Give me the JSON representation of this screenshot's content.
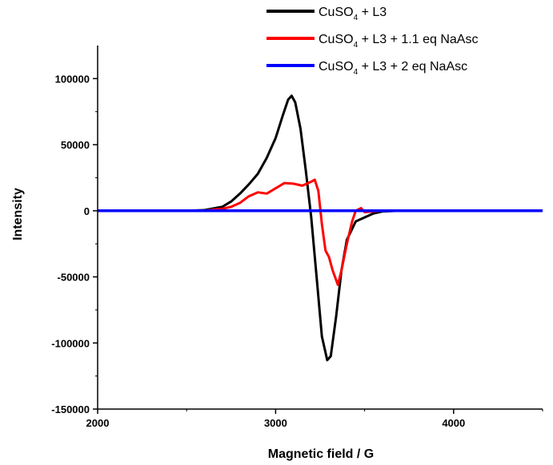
{
  "chart_data": {
    "type": "line",
    "title": "",
    "xlabel": "Magnetic field / G",
    "ylabel": "Intensity",
    "xlim": [
      2000,
      4500
    ],
    "ylim": [
      -150000,
      125000
    ],
    "x_ticks": [
      2000,
      3000,
      4000
    ],
    "x_tick_labels": [
      "2000",
      "3000",
      "4000"
    ],
    "y_ticks": [
      -150000,
      -100000,
      -50000,
      0,
      50000,
      100000
    ],
    "y_tick_labels": [
      "-150000",
      "-100000",
      "-50000",
      "0",
      "50000",
      "100000"
    ],
    "grid": false,
    "legend_position": "top-right",
    "series": [
      {
        "legend_parts": [
          "CuSO",
          "4",
          " + L3"
        ],
        "color": "#000000",
        "points": [
          [
            2000,
            0
          ],
          [
            2500,
            0
          ],
          [
            2600,
            500
          ],
          [
            2700,
            3000
          ],
          [
            2750,
            7000
          ],
          [
            2800,
            13000
          ],
          [
            2850,
            20000
          ],
          [
            2900,
            28000
          ],
          [
            2950,
            40000
          ],
          [
            3000,
            55000
          ],
          [
            3040,
            72000
          ],
          [
            3070,
            84000
          ],
          [
            3090,
            87000
          ],
          [
            3110,
            82000
          ],
          [
            3140,
            62000
          ],
          [
            3170,
            30000
          ],
          [
            3200,
            -5000
          ],
          [
            3230,
            -50000
          ],
          [
            3260,
            -95000
          ],
          [
            3290,
            -113000
          ],
          [
            3310,
            -110000
          ],
          [
            3340,
            -80000
          ],
          [
            3370,
            -45000
          ],
          [
            3400,
            -22000
          ],
          [
            3450,
            -8000
          ],
          [
            3500,
            -5000
          ],
          [
            3550,
            -2000
          ],
          [
            3600,
            -500
          ],
          [
            3700,
            0
          ],
          [
            4500,
            0
          ]
        ]
      },
      {
        "legend_parts": [
          "CuSO",
          "4",
          " + L3 + 1.1 eq NaAsc"
        ],
        "color": "#ff0000",
        "points": [
          [
            2000,
            0
          ],
          [
            2600,
            0
          ],
          [
            2700,
            1500
          ],
          [
            2750,
            3000
          ],
          [
            2800,
            6000
          ],
          [
            2850,
            11000
          ],
          [
            2900,
            14000
          ],
          [
            2950,
            13000
          ],
          [
            3000,
            17000
          ],
          [
            3050,
            21000
          ],
          [
            3100,
            20500
          ],
          [
            3150,
            19000
          ],
          [
            3200,
            22000
          ],
          [
            3220,
            23500
          ],
          [
            3240,
            15000
          ],
          [
            3260,
            -10000
          ],
          [
            3280,
            -30000
          ],
          [
            3300,
            -35000
          ],
          [
            3320,
            -45000
          ],
          [
            3350,
            -56000
          ],
          [
            3370,
            -45000
          ],
          [
            3400,
            -25000
          ],
          [
            3430,
            -8000
          ],
          [
            3450,
            0
          ],
          [
            3480,
            2000
          ],
          [
            3500,
            -1000
          ],
          [
            3600,
            0
          ],
          [
            4500,
            0
          ]
        ]
      },
      {
        "legend_parts": [
          "CuSO",
          "4",
          " + L3 +  2 eq NaAsc"
        ],
        "color": "#0000ff",
        "points": [
          [
            2000,
            0
          ],
          [
            4500,
            0
          ]
        ]
      }
    ]
  }
}
